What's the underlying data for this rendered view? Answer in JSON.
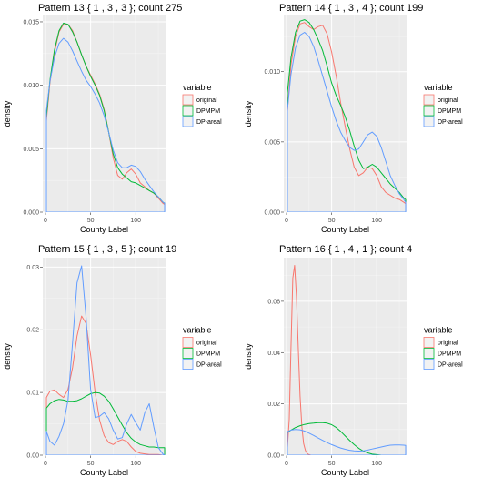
{
  "colors": {
    "panel_bg": "#ebebeb",
    "grid_major": "#ffffff",
    "grid_minor": "#f5f5f5",
    "original": "#f8766d",
    "DPMPM": "#00ba38",
    "DP-areal": "#619cff"
  },
  "chart_data": [
    {
      "type": "line",
      "title": "Pattern 13 { 1 , 3 ,  3 }; count 275",
      "xlabel": "County Label",
      "ylabel": "density",
      "xlim": [
        -3,
        133
      ],
      "ylim": [
        0,
        0.0155
      ],
      "xticks": [
        0,
        50,
        100
      ],
      "yticks": [
        0.0,
        0.005,
        0.01,
        0.015
      ],
      "ytick_labels": [
        "0.000",
        "0.005",
        "0.010",
        "0.015"
      ],
      "legend_title": "variable",
      "legend_position": "right",
      "series": [
        {
          "name": "original",
          "x": [
            1,
            5,
            10,
            15,
            20,
            25,
            30,
            35,
            40,
            45,
            50,
            55,
            60,
            65,
            70,
            75,
            80,
            85,
            90,
            95,
            100,
            105,
            110,
            115,
            120,
            125,
            130,
            132
          ],
          "y": [
            0.0072,
            0.0102,
            0.0126,
            0.0142,
            0.0148,
            0.0148,
            0.0143,
            0.0134,
            0.0124,
            0.0115,
            0.0108,
            0.0101,
            0.0093,
            0.0081,
            0.0063,
            0.0043,
            0.0029,
            0.0026,
            0.0031,
            0.0034,
            0.003,
            0.0023,
            0.002,
            0.0017,
            0.0015,
            0.0011,
            0.0007,
            0.0006
          ]
        },
        {
          "name": "DPMPM",
          "x": [
            1,
            5,
            10,
            15,
            20,
            25,
            30,
            35,
            40,
            45,
            50,
            55,
            60,
            65,
            70,
            75,
            80,
            85,
            90,
            95,
            100,
            105,
            110,
            115,
            120,
            125,
            130,
            132
          ],
          "y": [
            0.0075,
            0.0104,
            0.0128,
            0.0143,
            0.0149,
            0.0148,
            0.0142,
            0.0134,
            0.0124,
            0.0115,
            0.0107,
            0.01,
            0.0092,
            0.008,
            0.0063,
            0.0046,
            0.0035,
            0.003,
            0.0027,
            0.0024,
            0.0023,
            0.0021,
            0.0019,
            0.0017,
            0.0015,
            0.0012,
            0.0008,
            0.0007
          ]
        },
        {
          "name": "DP-areal",
          "x": [
            1,
            5,
            10,
            15,
            20,
            25,
            30,
            35,
            40,
            45,
            50,
            55,
            60,
            65,
            70,
            75,
            80,
            85,
            90,
            95,
            100,
            105,
            110,
            115,
            120,
            125,
            130,
            132
          ],
          "y": [
            0.008,
            0.0103,
            0.0122,
            0.0133,
            0.0137,
            0.0134,
            0.0127,
            0.0119,
            0.0111,
            0.0104,
            0.0099,
            0.0093,
            0.0086,
            0.0076,
            0.0063,
            0.0049,
            0.0039,
            0.0035,
            0.0035,
            0.0037,
            0.0036,
            0.0032,
            0.0026,
            0.0021,
            0.0016,
            0.0012,
            0.0008,
            0.0007
          ]
        }
      ]
    },
    {
      "type": "line",
      "title": "Pattern 14 { 1 , 3 ,  4 }; count 199",
      "xlabel": "County Label",
      "ylabel": "density",
      "xlim": [
        -3,
        133
      ],
      "ylim": [
        0,
        0.014
      ],
      "xticks": [
        0,
        50,
        100
      ],
      "yticks": [
        0.0,
        0.005,
        0.01
      ],
      "ytick_labels": [
        "0.000",
        "0.005",
        "0.010"
      ],
      "legend_title": "variable",
      "legend_position": "right",
      "series": [
        {
          "name": "original",
          "x": [
            1,
            5,
            10,
            15,
            20,
            25,
            30,
            35,
            40,
            45,
            50,
            55,
            60,
            65,
            70,
            75,
            80,
            85,
            90,
            95,
            100,
            105,
            110,
            115,
            120,
            125,
            130,
            132
          ],
          "y": [
            0.0072,
            0.0105,
            0.0125,
            0.0134,
            0.0135,
            0.0132,
            0.013,
            0.0132,
            0.0133,
            0.0127,
            0.0114,
            0.0097,
            0.0078,
            0.0061,
            0.0045,
            0.0032,
            0.0026,
            0.0028,
            0.0032,
            0.0031,
            0.0026,
            0.0018,
            0.0014,
            0.0012,
            0.001,
            0.0009,
            0.0007,
            0.0006
          ]
        },
        {
          "name": "DPMPM",
          "x": [
            1,
            5,
            10,
            15,
            20,
            25,
            30,
            35,
            40,
            45,
            50,
            55,
            60,
            65,
            70,
            75,
            80,
            85,
            90,
            95,
            100,
            105,
            110,
            115,
            120,
            125,
            130,
            132
          ],
          "y": [
            0.0085,
            0.011,
            0.0128,
            0.0136,
            0.0137,
            0.0135,
            0.013,
            0.0123,
            0.0115,
            0.0104,
            0.0092,
            0.0083,
            0.0076,
            0.0068,
            0.0058,
            0.0047,
            0.0037,
            0.0031,
            0.0032,
            0.0034,
            0.0032,
            0.0028,
            0.0024,
            0.002,
            0.0017,
            0.0014,
            0.001,
            0.0009
          ]
        },
        {
          "name": "DP-areal",
          "x": [
            1,
            5,
            10,
            15,
            20,
            25,
            30,
            35,
            40,
            45,
            50,
            55,
            60,
            65,
            70,
            75,
            80,
            85,
            90,
            95,
            100,
            105,
            110,
            115,
            120,
            125,
            130,
            132
          ],
          "y": [
            0.0073,
            0.0098,
            0.0117,
            0.0126,
            0.0128,
            0.0125,
            0.0118,
            0.0108,
            0.0097,
            0.0086,
            0.0075,
            0.0065,
            0.0057,
            0.0051,
            0.0046,
            0.0044,
            0.0045,
            0.005,
            0.0055,
            0.0057,
            0.0054,
            0.0046,
            0.0036,
            0.0026,
            0.0019,
            0.0013,
            0.0009,
            0.0007
          ]
        }
      ]
    },
    {
      "type": "line",
      "title": "Pattern 15 { 1 , 3 ,  5 }; count 19",
      "xlabel": "County Label",
      "ylabel": "density",
      "xlim": [
        -3,
        133
      ],
      "ylim": [
        0,
        0.0315
      ],
      "xticks": [
        0,
        50,
        100
      ],
      "yticks": [
        0.0,
        0.01,
        0.02,
        0.03
      ],
      "ytick_labels": [
        "0.00",
        "0.01",
        "0.02",
        "0.03"
      ],
      "legend_title": "variable",
      "legend_position": "right",
      "series": [
        {
          "name": "original",
          "x": [
            1,
            5,
            10,
            15,
            20,
            25,
            30,
            35,
            40,
            45,
            50,
            55,
            60,
            65,
            70,
            75,
            80,
            85,
            90,
            95,
            100,
            105,
            110,
            115,
            120,
            125,
            130,
            132
          ],
          "y": [
            0.0092,
            0.0102,
            0.0104,
            0.0097,
            0.0092,
            0.0105,
            0.014,
            0.019,
            0.0222,
            0.021,
            0.016,
            0.01,
            0.0056,
            0.0031,
            0.002,
            0.0017,
            0.0022,
            0.0025,
            0.0022,
            0.0013,
            0.0006,
            0.0003,
            0.0002,
            0.0001,
            0.0001,
            0.0001,
            0.0,
            0.0
          ]
        },
        {
          "name": "DPMPM",
          "x": [
            1,
            5,
            10,
            15,
            20,
            25,
            30,
            35,
            40,
            45,
            50,
            55,
            60,
            65,
            70,
            75,
            80,
            85,
            90,
            95,
            100,
            105,
            110,
            115,
            120,
            125,
            130,
            132
          ],
          "y": [
            0.0075,
            0.0082,
            0.0087,
            0.0089,
            0.0088,
            0.0086,
            0.0086,
            0.0087,
            0.009,
            0.0094,
            0.0098,
            0.01,
            0.0099,
            0.0094,
            0.0086,
            0.0074,
            0.0061,
            0.0048,
            0.0036,
            0.0027,
            0.0021,
            0.0017,
            0.0015,
            0.0013,
            0.0013,
            0.0012,
            0.0012,
            0.0012
          ]
        },
        {
          "name": "DP-areal",
          "x": [
            1,
            5,
            10,
            15,
            20,
            25,
            30,
            35,
            40,
            45,
            50,
            55,
            60,
            65,
            70,
            75,
            80,
            85,
            90,
            95,
            100,
            105,
            110,
            115,
            120,
            125,
            130,
            132
          ],
          "y": [
            0.0038,
            0.0022,
            0.0016,
            0.003,
            0.005,
            0.0088,
            0.018,
            0.0275,
            0.0302,
            0.022,
            0.0105,
            0.006,
            0.0062,
            0.0068,
            0.0058,
            0.004,
            0.0026,
            0.0028,
            0.005,
            0.0065,
            0.0052,
            0.004,
            0.0068,
            0.0082,
            0.0045,
            0.0012,
            0.0002,
            0.0
          ]
        }
      ]
    },
    {
      "type": "line",
      "title": "Pattern 16 { 1 , 4 ,  1 }; count 4",
      "xlabel": "County Label",
      "ylabel": "density",
      "xlim": [
        -3,
        133
      ],
      "ylim": [
        0,
        0.077
      ],
      "xticks": [
        0,
        50,
        100
      ],
      "yticks": [
        0.0,
        0.02,
        0.04,
        0.06
      ],
      "ytick_labels": [
        "0.00",
        "0.02",
        "0.04",
        "0.06"
      ],
      "legend_title": "variable",
      "legend_position": "right",
      "series": [
        {
          "name": "original",
          "x": [
            1,
            3,
            5,
            7,
            9,
            11,
            13,
            15,
            17,
            19,
            21,
            23,
            25,
            27
          ],
          "y": [
            0.003,
            0.014,
            0.042,
            0.069,
            0.074,
            0.062,
            0.042,
            0.023,
            0.011,
            0.0045,
            0.0018,
            0.0006,
            0.0002,
            0.0
          ]
        },
        {
          "name": "DPMPM",
          "x": [
            1,
            5,
            10,
            15,
            20,
            25,
            30,
            35,
            40,
            45,
            50,
            55,
            60,
            65,
            70,
            75,
            80,
            85,
            90,
            95,
            100,
            105
          ],
          "y": [
            0.0088,
            0.0098,
            0.0108,
            0.0115,
            0.012,
            0.0123,
            0.0125,
            0.0127,
            0.0127,
            0.0125,
            0.0119,
            0.0108,
            0.0093,
            0.0075,
            0.0057,
            0.0041,
            0.0027,
            0.0016,
            0.0009,
            0.0004,
            0.0002,
            0.0
          ]
        },
        {
          "name": "DP-areal",
          "x": [
            1,
            5,
            10,
            15,
            20,
            25,
            30,
            35,
            40,
            45,
            50,
            55,
            60,
            65,
            70,
            75,
            80,
            85,
            90,
            95,
            100,
            105,
            110,
            115,
            120,
            125,
            130,
            132
          ],
          "y": [
            0.0092,
            0.0098,
            0.01,
            0.0099,
            0.0094,
            0.0086,
            0.0077,
            0.0067,
            0.0058,
            0.0049,
            0.0041,
            0.0034,
            0.0028,
            0.0023,
            0.0019,
            0.0017,
            0.0016,
            0.0017,
            0.002,
            0.0024,
            0.0028,
            0.0032,
            0.0036,
            0.0039,
            0.004,
            0.004,
            0.0039,
            0.0038
          ]
        }
      ]
    }
  ]
}
